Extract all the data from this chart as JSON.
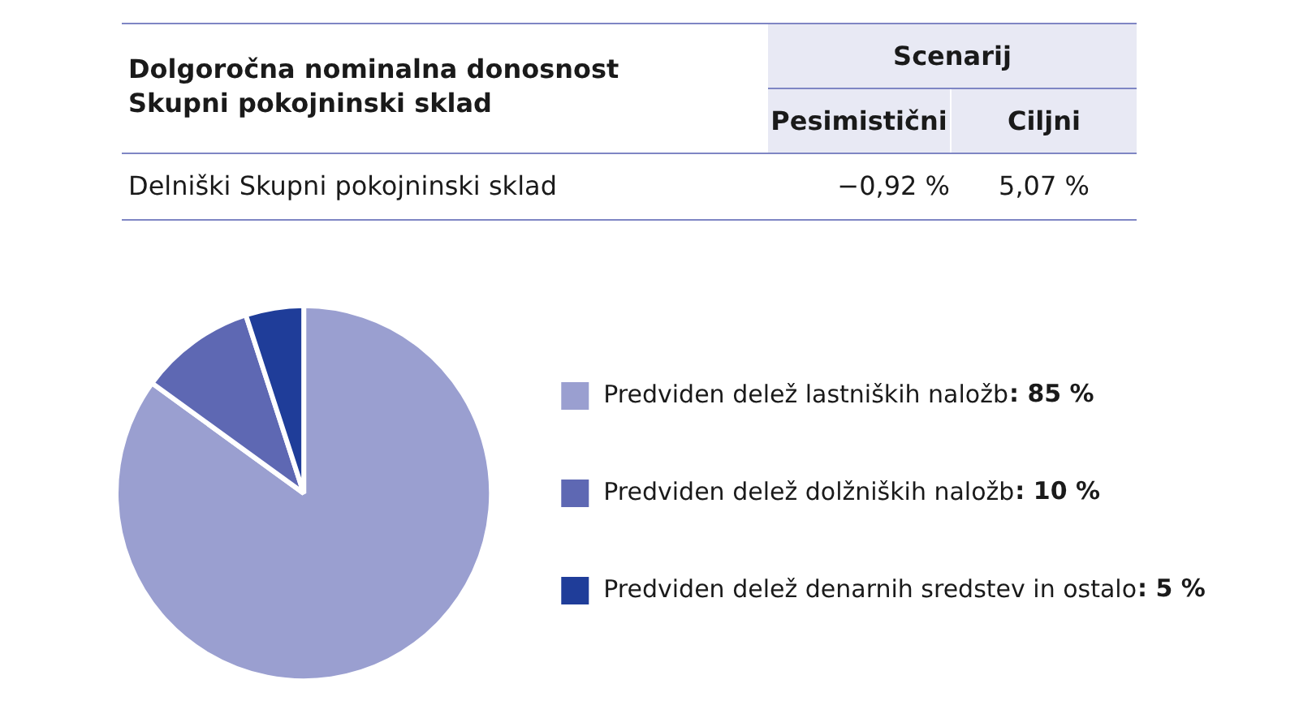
{
  "chart_data": {
    "type": "pie",
    "categories": [
      "Predviden delež lastniških naložb",
      "Predviden delež dolžniških naložb",
      "Predviden delež denarnih sredstev in ostalo"
    ],
    "values": [
      85,
      10,
      5
    ],
    "value_labels": [
      ": 85 %",
      ": 10 %",
      ": 5 %"
    ],
    "colors": [
      "#9a9fd0",
      "#5e68b3",
      "#1f3d99"
    ],
    "legend": "right",
    "annotations": [
      "Dolgoročna nominalna donosnost Skupni pokojninski sklad",
      "Scenarij",
      "Pesimistični",
      "Ciljni",
      "Delniški Skupni pokojninski sklad",
      "−0,92 %",
      "5,07 %"
    ]
  }
}
